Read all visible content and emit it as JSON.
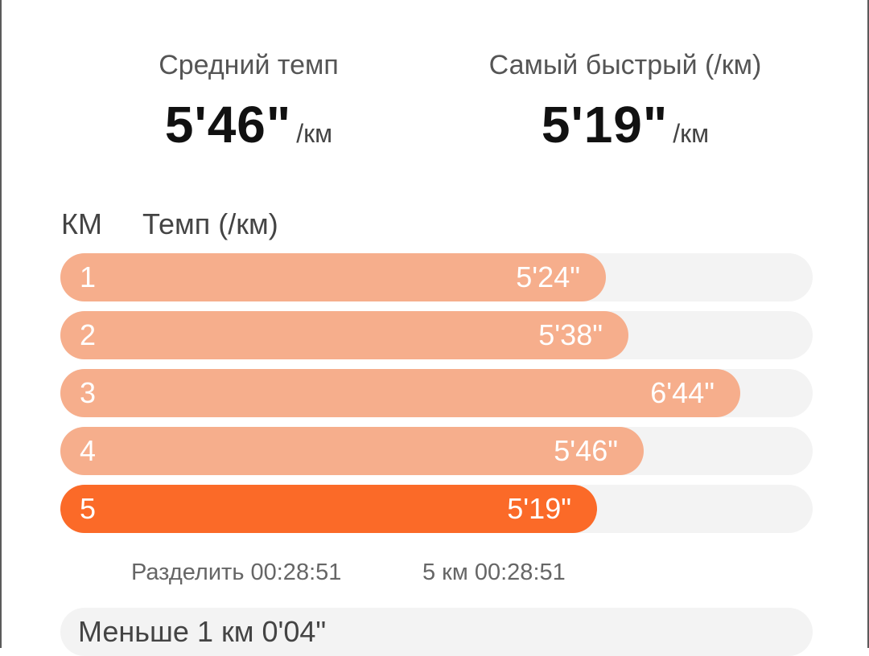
{
  "stats": {
    "average": {
      "label": "Средний темп",
      "value": "5'46\"",
      "unit": "/км"
    },
    "fastest": {
      "label": "Самый быстрый (/км)",
      "value": "5'19\"",
      "unit": "/км"
    }
  },
  "table": {
    "header_km": "КМ",
    "header_pace": "Темп (/км)",
    "rows": [
      {
        "km": "1",
        "pace": "5'24\"",
        "fill": 0.725,
        "best": false
      },
      {
        "km": "2",
        "pace": "5'38\"",
        "fill": 0.755,
        "best": false
      },
      {
        "km": "3",
        "pace": "6'44\"",
        "fill": 0.904,
        "best": false
      },
      {
        "km": "4",
        "pace": "5'46\"",
        "fill": 0.775,
        "best": false
      },
      {
        "km": "5",
        "pace": "5'19\"",
        "fill": 0.713,
        "best": true
      }
    ]
  },
  "summary": {
    "split": "Разделить 00:28:51",
    "total": "5 км 00:28:51"
  },
  "remainder": "Меньше 1 км 0'04\"",
  "colors": {
    "bar": "#f6ae8c",
    "best_bar": "#fb6a28",
    "track": "#f3f3f3"
  }
}
